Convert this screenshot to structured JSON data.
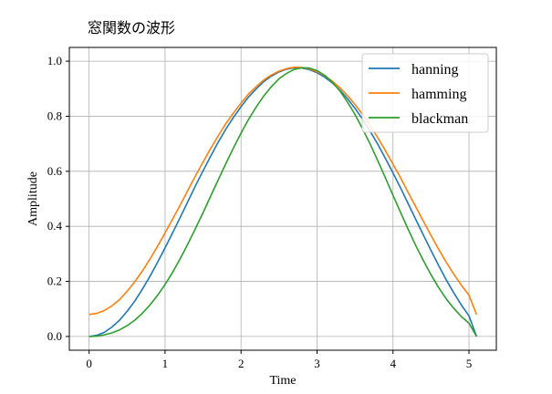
{
  "chart_data": {
    "type": "line",
    "title": "窓関数の波形",
    "xlabel": "Time",
    "ylabel": "Amplitude",
    "xlim": [
      -0.26,
      5.36
    ],
    "ylim": [
      -0.05,
      1.05
    ],
    "x_ticks": [
      0,
      1,
      2,
      3,
      4,
      5
    ],
    "y_ticks": [
      0.0,
      0.2,
      0.4,
      0.6,
      0.8,
      1.0
    ],
    "grid": true,
    "legend_position": "top-right",
    "x": [
      0,
      0.1,
      0.2,
      0.3,
      0.4,
      0.5,
      0.6,
      0.7,
      0.8,
      0.9,
      1.0,
      1.1,
      1.2,
      1.3,
      1.4,
      1.5,
      1.6,
      1.7,
      1.8,
      1.9,
      2.0,
      2.1,
      2.2,
      2.3,
      2.4,
      2.5,
      2.6,
      2.7,
      2.8,
      2.9,
      3.0,
      3.1,
      3.2,
      3.3,
      3.4,
      3.5,
      3.6,
      3.7,
      3.8,
      3.9,
      4.0,
      4.1,
      4.2,
      4.3,
      4.4,
      4.5,
      4.6,
      4.7,
      4.8,
      4.9,
      5.0,
      5.1
    ],
    "series": [
      {
        "name": "hanning",
        "color": "#1f77b4",
        "values": [
          0.0,
          0.004,
          0.015,
          0.034,
          0.059,
          0.091,
          0.128,
          0.171,
          0.218,
          0.269,
          0.322,
          0.377,
          0.433,
          0.49,
          0.547,
          0.602,
          0.655,
          0.706,
          0.753,
          0.796,
          0.835,
          0.87,
          0.9,
          0.926,
          0.946,
          0.961,
          0.971,
          0.976,
          0.975,
          0.969,
          0.958,
          0.942,
          0.921,
          0.895,
          0.864,
          0.829,
          0.789,
          0.745,
          0.698,
          0.647,
          0.594,
          0.539,
          0.482,
          0.425,
          0.368,
          0.312,
          0.258,
          0.206,
          0.158,
          0.114,
          0.075,
          0.0
        ]
      },
      {
        "name": "hamming",
        "color": "#ff7f0e",
        "values": [
          0.08,
          0.084,
          0.094,
          0.111,
          0.134,
          0.164,
          0.198,
          0.237,
          0.281,
          0.327,
          0.376,
          0.427,
          0.478,
          0.531,
          0.583,
          0.634,
          0.683,
          0.729,
          0.773,
          0.812,
          0.848,
          0.881,
          0.908,
          0.932,
          0.95,
          0.964,
          0.973,
          0.978,
          0.977,
          0.972,
          0.962,
          0.947,
          0.928,
          0.904,
          0.875,
          0.843,
          0.806,
          0.765,
          0.722,
          0.675,
          0.626,
          0.576,
          0.523,
          0.471,
          0.418,
          0.367,
          0.317,
          0.27,
          0.226,
          0.186,
          0.15,
          0.08
        ]
      },
      {
        "name": "blackman",
        "color": "#2ca02c",
        "values": [
          0.0,
          0.001,
          0.006,
          0.013,
          0.024,
          0.039,
          0.059,
          0.084,
          0.114,
          0.149,
          0.189,
          0.234,
          0.283,
          0.336,
          0.392,
          0.45,
          0.51,
          0.569,
          0.628,
          0.685,
          0.739,
          0.789,
          0.834,
          0.874,
          0.908,
          0.936,
          0.956,
          0.97,
          0.976,
          0.975,
          0.966,
          0.949,
          0.924,
          0.892,
          0.852,
          0.806,
          0.754,
          0.698,
          0.638,
          0.576,
          0.513,
          0.45,
          0.389,
          0.33,
          0.275,
          0.224,
          0.178,
          0.137,
          0.102,
          0.072,
          0.048,
          0.0
        ]
      }
    ]
  }
}
